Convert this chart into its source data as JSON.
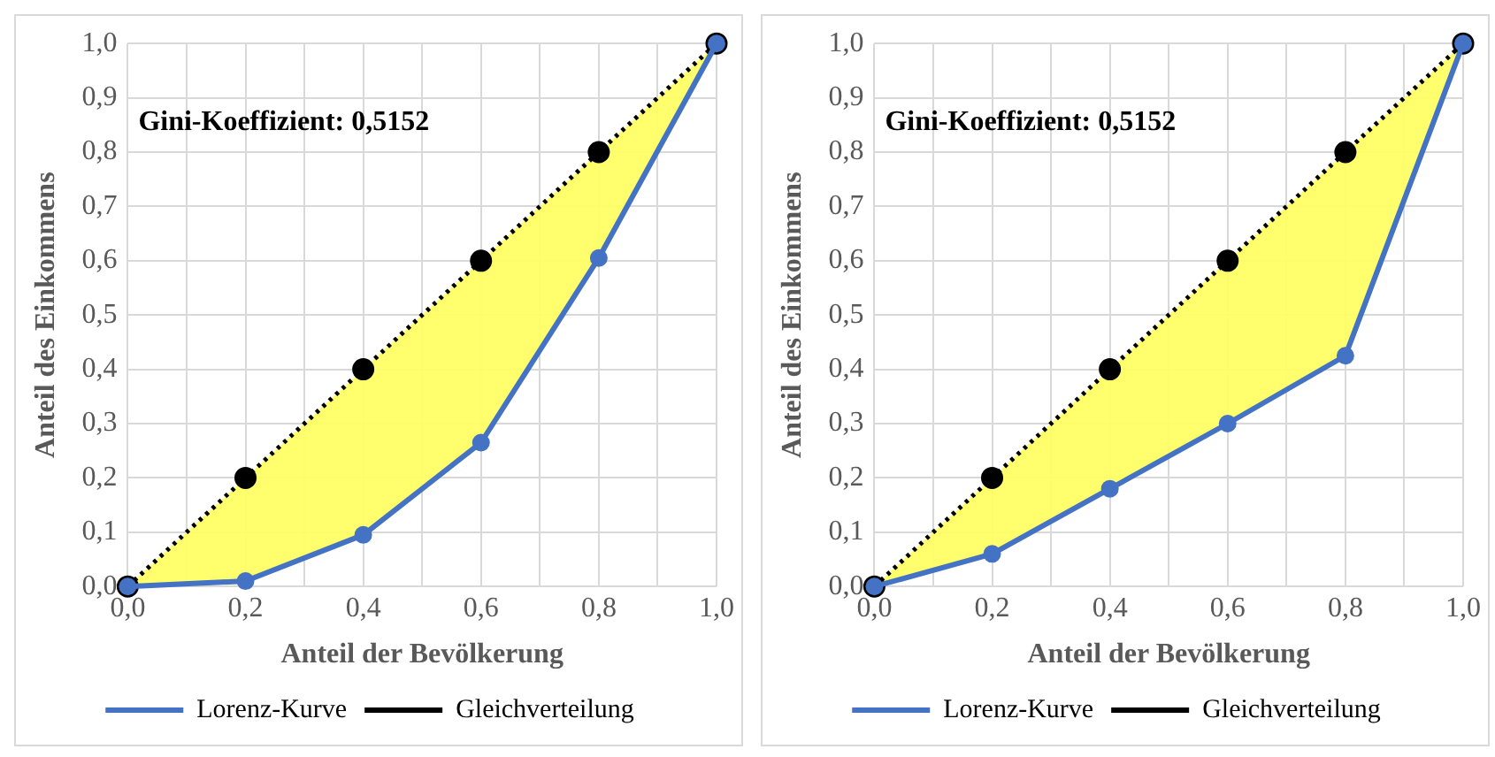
{
  "chart_data": [
    {
      "type": "line",
      "xlabel": "Anteil der Bevölkerung",
      "ylabel": "Anteil des Einkommens",
      "annotations": [
        "Gini-Koeffizient: 0,5152"
      ],
      "x": [
        0,
        0.2,
        0.4,
        0.6,
        0.8,
        1
      ],
      "series": [
        {
          "name": "Lorenz-Kurve",
          "color": "#4472c4",
          "values": [
            0,
            0.01,
            0.095,
            0.265,
            0.605,
            1
          ],
          "line_style": "solid"
        },
        {
          "name": "Gleichverteilung",
          "color": "#000000",
          "values": [
            0,
            0.2,
            0.4,
            0.6,
            0.8,
            1
          ],
          "line_style": "dotted"
        }
      ],
      "xlim": [
        0,
        1
      ],
      "ylim": [
        0,
        1
      ],
      "xticks": [
        {
          "value": 0,
          "label": "0,0"
        },
        {
          "value": 0.1,
          "label": null
        },
        {
          "value": 0.2,
          "label": "0,2"
        },
        {
          "value": 0.3,
          "label": null
        },
        {
          "value": 0.4,
          "label": "0,4"
        },
        {
          "value": 0.5,
          "label": null
        },
        {
          "value": 0.6,
          "label": "0,6"
        },
        {
          "value": 0.7,
          "label": null
        },
        {
          "value": 0.8,
          "label": "0,8"
        },
        {
          "value": 0.9,
          "label": null
        },
        {
          "value": 1,
          "label": "1,0"
        }
      ],
      "yticks": [
        {
          "value": 0,
          "label": "0,0"
        },
        {
          "value": 0.1,
          "label": "0,1"
        },
        {
          "value": 0.2,
          "label": "0,2"
        },
        {
          "value": 0.3,
          "label": "0,3"
        },
        {
          "value": 0.4,
          "label": "0,4"
        },
        {
          "value": 0.5,
          "label": "0,5"
        },
        {
          "value": 0.6,
          "label": "0,6"
        },
        {
          "value": 0.7,
          "label": "0,7"
        },
        {
          "value": 0.8,
          "label": "0,8"
        },
        {
          "value": 0.9,
          "label": "0,9"
        },
        {
          "value": 1,
          "label": "1,0"
        }
      ],
      "grid": true,
      "legend": "bottom",
      "marker": "circle"
    },
    {
      "type": "line",
      "xlabel": "Anteil der Bevölkerung",
      "ylabel": "Anteil des Einkommens",
      "annotations": [
        "Gini-Koeffizient: 0,5152"
      ],
      "x": [
        0,
        0.2,
        0.4,
        0.6,
        0.8,
        1
      ],
      "series": [
        {
          "name": "Lorenz-Kurve",
          "color": "#4472c4",
          "values": [
            0,
            0.06,
            0.18,
            0.3,
            0.425,
            1
          ],
          "line_style": "solid"
        },
        {
          "name": "Gleichverteilung",
          "color": "#000000",
          "values": [
            0,
            0.2,
            0.4,
            0.6,
            0.8,
            1
          ],
          "line_style": "dotted"
        }
      ],
      "xlim": [
        0,
        1
      ],
      "ylim": [
        0,
        1
      ],
      "xticks": [
        {
          "value": 0,
          "label": "0,0"
        },
        {
          "value": 0.1,
          "label": null
        },
        {
          "value": 0.2,
          "label": "0,2"
        },
        {
          "value": 0.3,
          "label": null
        },
        {
          "value": 0.4,
          "label": "0,4"
        },
        {
          "value": 0.5,
          "label": null
        },
        {
          "value": 0.6,
          "label": "0,6"
        },
        {
          "value": 0.7,
          "label": null
        },
        {
          "value": 0.8,
          "label": "0,8"
        },
        {
          "value": 0.9,
          "label": null
        },
        {
          "value": 1,
          "label": "1,0"
        }
      ],
      "yticks": [
        {
          "value": 0,
          "label": "0,0"
        },
        {
          "value": 0.1,
          "label": "0,1"
        },
        {
          "value": 0.2,
          "label": "0,2"
        },
        {
          "value": 0.3,
          "label": "0,3"
        },
        {
          "value": 0.4,
          "label": "0,4"
        },
        {
          "value": 0.5,
          "label": "0,5"
        },
        {
          "value": 0.6,
          "label": "0,6"
        },
        {
          "value": 0.7,
          "label": "0,7"
        },
        {
          "value": 0.8,
          "label": "0,8"
        },
        {
          "value": 0.9,
          "label": "0,9"
        },
        {
          "value": 1,
          "label": "1,0"
        }
      ],
      "grid": true,
      "legend": "bottom",
      "marker": "circle"
    }
  ]
}
